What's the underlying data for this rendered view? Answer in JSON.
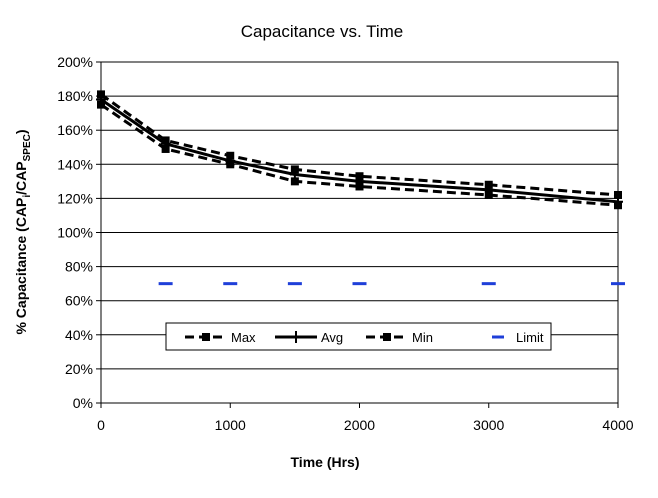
{
  "chart_data": {
    "type": "line",
    "title": "Capacitance vs. Time",
    "xlabel": "Time (Hrs)",
    "ylabel": {
      "prefix": "% Capacitance (CAP",
      "sub1": "i",
      "mid": "/CAP",
      "sub2": "SPEC",
      "suffix": ")"
    },
    "xlim": [
      0,
      4000
    ],
    "ylim": [
      0,
      200
    ],
    "x_ticks": [
      0,
      1000,
      2000,
      3000,
      4000
    ],
    "y_ticks": [
      0,
      20,
      40,
      60,
      80,
      100,
      120,
      140,
      160,
      180,
      200
    ],
    "y_tick_suffix": "%",
    "grid": "horizontal",
    "legend_position": "lower-center",
    "series": [
      {
        "name": "Max",
        "style": "dashed-square",
        "color": "#000000",
        "x": [
          0,
          500,
          1000,
          1500,
          2000,
          3000,
          4000
        ],
        "y": [
          181,
          154,
          145,
          137,
          133,
          128,
          122
        ]
      },
      {
        "name": "Avg",
        "style": "solid-plus",
        "color": "#000000",
        "x": [
          0,
          500,
          1000,
          1500,
          2000,
          3000,
          4000
        ],
        "y": [
          178,
          152,
          142,
          134,
          130,
          125,
          118
        ]
      },
      {
        "name": "Min",
        "style": "dashed-square",
        "color": "#000000",
        "x": [
          0,
          500,
          1000,
          1500,
          2000,
          3000,
          4000
        ],
        "y": [
          175,
          149,
          140,
          130,
          127,
          122,
          116
        ]
      },
      {
        "name": "Limit",
        "style": "dash-marker",
        "color": "#1f3fd9",
        "x": [
          500,
          1000,
          1500,
          2000,
          3000,
          4000
        ],
        "y": [
          70,
          70,
          70,
          70,
          70,
          70
        ]
      }
    ]
  }
}
